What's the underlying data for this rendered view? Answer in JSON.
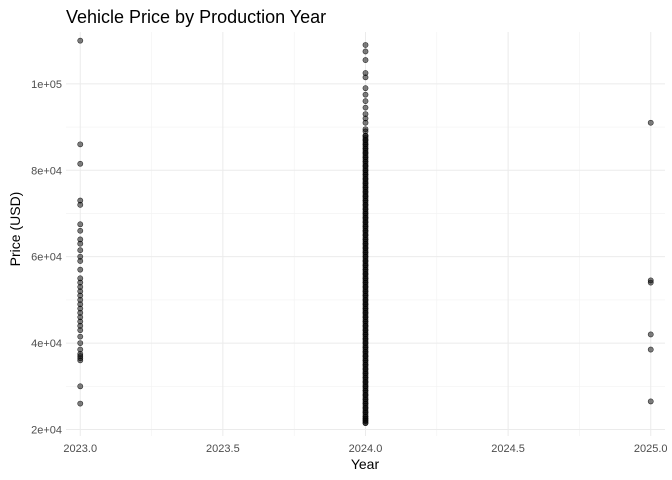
{
  "chart_data": {
    "type": "scatter",
    "title": "Vehicle Price by Production Year",
    "xlabel": "Year",
    "ylabel": "Price (USD)",
    "xlim": [
      2022.95,
      2025.05
    ],
    "ylim": [
      18500,
      112000
    ],
    "x_ticks": [
      2023.0,
      2023.5,
      2024.0,
      2024.5,
      2025.0
    ],
    "x_tick_labels": [
      "2023.0",
      "2023.5",
      "2024.0",
      "2024.5",
      "2025.0"
    ],
    "y_ticks": [
      20000,
      40000,
      60000,
      80000,
      100000
    ],
    "y_tick_labels": [
      "2e+04",
      "4e+04",
      "6e+04",
      "8e+04",
      "1e+05"
    ],
    "grid": true,
    "point_color": "#000000",
    "series": [
      {
        "x": 2023.0,
        "values": [
          110000,
          86000,
          81500,
          73000,
          72000,
          67500,
          66000,
          64000,
          63000,
          61500,
          60000,
          59000,
          57000,
          55000,
          54000,
          53000,
          52000,
          51000,
          50000,
          49000,
          48000,
          47000,
          46000,
          45000,
          44000,
          43000,
          41500,
          40000,
          38500,
          37500,
          37000,
          36500,
          36000,
          30000,
          26000
        ]
      },
      {
        "x": 2024.0,
        "values": [
          109000,
          107500,
          105500,
          102500,
          101500,
          99000,
          97500,
          96000,
          94500,
          93000,
          92000,
          91000,
          89500,
          89000,
          88000,
          87000,
          86000,
          85000,
          84000,
          83000,
          82000,
          81000,
          80000,
          79000,
          78000,
          77000,
          76000,
          75000,
          74000,
          73000,
          72000,
          71000,
          70000,
          69000,
          68000,
          67000,
          66000,
          65000,
          64000,
          63000,
          62000,
          61000,
          60000,
          59000,
          58000,
          57000,
          56000,
          55000,
          54000,
          53000,
          52000,
          51000,
          50000,
          49000,
          48000,
          47000,
          46000,
          45000,
          44000,
          43000,
          42000,
          41000,
          40000,
          39000,
          38000,
          37000,
          36000,
          35000,
          34000,
          33000,
          32000,
          31000,
          30000,
          29000,
          28000,
          27000,
          26000,
          25000,
          24000,
          23000,
          22500,
          22000,
          21500
        ]
      },
      {
        "x": 2025.0,
        "values": [
          91000,
          54500,
          54000,
          42000,
          38500,
          26500
        ]
      }
    ]
  }
}
